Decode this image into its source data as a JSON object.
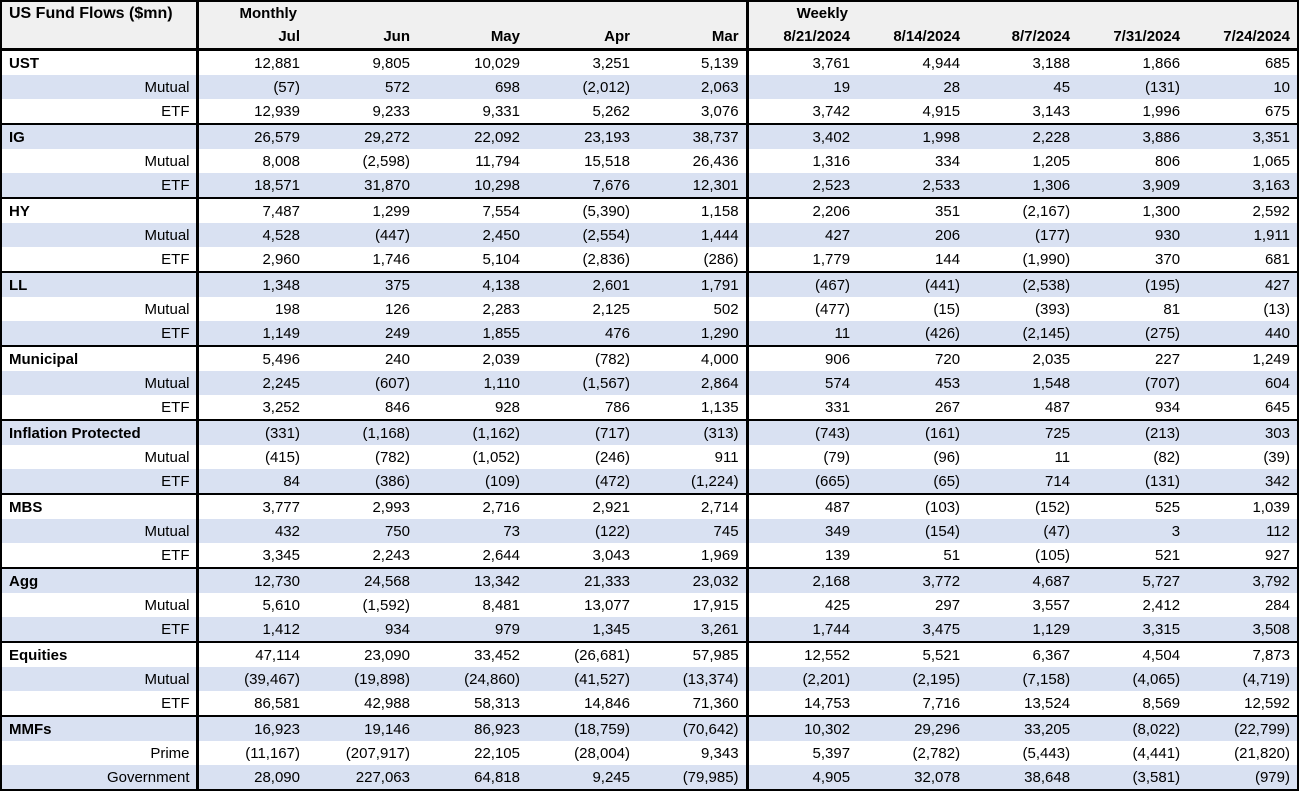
{
  "table": {
    "title": "US Fund Flows ($mn)",
    "sections": {
      "monthly": "Monthly",
      "weekly": "Weekly"
    },
    "monthly_columns": [
      "Jul",
      "Jun",
      "May",
      "Apr",
      "Mar"
    ],
    "weekly_columns": [
      "8/21/2024",
      "8/14/2024",
      "8/7/2024",
      "7/31/2024",
      "7/24/2024"
    ],
    "colors": {
      "stripe": "#d9e1f2",
      "header_bg": "#f0f0f0",
      "border": "#000000",
      "background": "#ffffff"
    },
    "groups": [
      {
        "rows": [
          {
            "label": "UST",
            "type": "category",
            "monthly": [
              "12,881",
              "9,805",
              "10,029",
              "3,251",
              "5,139"
            ],
            "weekly": [
              "3,761",
              "4,944",
              "3,188",
              "1,866",
              "685"
            ]
          },
          {
            "label": "Mutual",
            "type": "sub",
            "monthly": [
              "(57)",
              "572",
              "698",
              "(2,012)",
              "2,063"
            ],
            "weekly": [
              "19",
              "28",
              "45",
              "(131)",
              "10"
            ]
          },
          {
            "label": "ETF",
            "type": "sub",
            "monthly": [
              "12,939",
              "9,233",
              "9,331",
              "5,262",
              "3,076"
            ],
            "weekly": [
              "3,742",
              "4,915",
              "3,143",
              "1,996",
              "675"
            ]
          }
        ]
      },
      {
        "rows": [
          {
            "label": "IG",
            "type": "category",
            "monthly": [
              "26,579",
              "29,272",
              "22,092",
              "23,193",
              "38,737"
            ],
            "weekly": [
              "3,402",
              "1,998",
              "2,228",
              "3,886",
              "3,351"
            ]
          },
          {
            "label": "Mutual",
            "type": "sub",
            "monthly": [
              "8,008",
              "(2,598)",
              "11,794",
              "15,518",
              "26,436"
            ],
            "weekly": [
              "1,316",
              "334",
              "1,205",
              "806",
              "1,065"
            ]
          },
          {
            "label": "ETF",
            "type": "sub",
            "monthly": [
              "18,571",
              "31,870",
              "10,298",
              "7,676",
              "12,301"
            ],
            "weekly": [
              "2,523",
              "2,533",
              "1,306",
              "3,909",
              "3,163"
            ]
          }
        ]
      },
      {
        "rows": [
          {
            "label": "HY",
            "type": "category",
            "monthly": [
              "7,487",
              "1,299",
              "7,554",
              "(5,390)",
              "1,158"
            ],
            "weekly": [
              "2,206",
              "351",
              "(2,167)",
              "1,300",
              "2,592"
            ]
          },
          {
            "label": "Mutual",
            "type": "sub",
            "monthly": [
              "4,528",
              "(447)",
              "2,450",
              "(2,554)",
              "1,444"
            ],
            "weekly": [
              "427",
              "206",
              "(177)",
              "930",
              "1,911"
            ]
          },
          {
            "label": "ETF",
            "type": "sub",
            "monthly": [
              "2,960",
              "1,746",
              "5,104",
              "(2,836)",
              "(286)"
            ],
            "weekly": [
              "1,779",
              "144",
              "(1,990)",
              "370",
              "681"
            ]
          }
        ]
      },
      {
        "rows": [
          {
            "label": "LL",
            "type": "category",
            "monthly": [
              "1,348",
              "375",
              "4,138",
              "2,601",
              "1,791"
            ],
            "weekly": [
              "(467)",
              "(441)",
              "(2,538)",
              "(195)",
              "427"
            ]
          },
          {
            "label": "Mutual",
            "type": "sub",
            "monthly": [
              "198",
              "126",
              "2,283",
              "2,125",
              "502"
            ],
            "weekly": [
              "(477)",
              "(15)",
              "(393)",
              "81",
              "(13)"
            ]
          },
          {
            "label": "ETF",
            "type": "sub",
            "monthly": [
              "1,149",
              "249",
              "1,855",
              "476",
              "1,290"
            ],
            "weekly": [
              "11",
              "(426)",
              "(2,145)",
              "(275)",
              "440"
            ]
          }
        ]
      },
      {
        "rows": [
          {
            "label": "Municipal",
            "type": "category",
            "monthly": [
              "5,496",
              "240",
              "2,039",
              "(782)",
              "4,000"
            ],
            "weekly": [
              "906",
              "720",
              "2,035",
              "227",
              "1,249"
            ]
          },
          {
            "label": "Mutual",
            "type": "sub",
            "monthly": [
              "2,245",
              "(607)",
              "1,110",
              "(1,567)",
              "2,864"
            ],
            "weekly": [
              "574",
              "453",
              "1,548",
              "(707)",
              "604"
            ]
          },
          {
            "label": "ETF",
            "type": "sub",
            "monthly": [
              "3,252",
              "846",
              "928",
              "786",
              "1,135"
            ],
            "weekly": [
              "331",
              "267",
              "487",
              "934",
              "645"
            ]
          }
        ]
      },
      {
        "rows": [
          {
            "label": "Inflation Protected",
            "type": "category",
            "monthly": [
              "(331)",
              "(1,168)",
              "(1,162)",
              "(717)",
              "(313)"
            ],
            "weekly": [
              "(743)",
              "(161)",
              "725",
              "(213)",
              "303"
            ]
          },
          {
            "label": "Mutual",
            "type": "sub",
            "monthly": [
              "(415)",
              "(782)",
              "(1,052)",
              "(246)",
              "911"
            ],
            "weekly": [
              "(79)",
              "(96)",
              "11",
              "(82)",
              "(39)"
            ]
          },
          {
            "label": "ETF",
            "type": "sub",
            "monthly": [
              "84",
              "(386)",
              "(109)",
              "(472)",
              "(1,224)"
            ],
            "weekly": [
              "(665)",
              "(65)",
              "714",
              "(131)",
              "342"
            ]
          }
        ]
      },
      {
        "rows": [
          {
            "label": "MBS",
            "type": "category",
            "monthly": [
              "3,777",
              "2,993",
              "2,716",
              "2,921",
              "2,714"
            ],
            "weekly": [
              "487",
              "(103)",
              "(152)",
              "525",
              "1,039"
            ]
          },
          {
            "label": "Mutual",
            "type": "sub",
            "monthly": [
              "432",
              "750",
              "73",
              "(122)",
              "745"
            ],
            "weekly": [
              "349",
              "(154)",
              "(47)",
              "3",
              "112"
            ]
          },
          {
            "label": "ETF",
            "type": "sub",
            "monthly": [
              "3,345",
              "2,243",
              "2,644",
              "3,043",
              "1,969"
            ],
            "weekly": [
              "139",
              "51",
              "(105)",
              "521",
              "927"
            ]
          }
        ]
      },
      {
        "rows": [
          {
            "label": "Agg",
            "type": "category",
            "monthly": [
              "12,730",
              "24,568",
              "13,342",
              "21,333",
              "23,032"
            ],
            "weekly": [
              "2,168",
              "3,772",
              "4,687",
              "5,727",
              "3,792"
            ]
          },
          {
            "label": "Mutual",
            "type": "sub",
            "monthly": [
              "5,610",
              "(1,592)",
              "8,481",
              "13,077",
              "17,915"
            ],
            "weekly": [
              "425",
              "297",
              "3,557",
              "2,412",
              "284"
            ]
          },
          {
            "label": "ETF",
            "type": "sub",
            "monthly": [
              "1,412",
              "934",
              "979",
              "1,345",
              "3,261"
            ],
            "weekly": [
              "1,744",
              "3,475",
              "1,129",
              "3,315",
              "3,508"
            ]
          }
        ]
      },
      {
        "rows": [
          {
            "label": "Equities",
            "type": "category",
            "monthly": [
              "47,114",
              "23,090",
              "33,452",
              "(26,681)",
              "57,985"
            ],
            "weekly": [
              "12,552",
              "5,521",
              "6,367",
              "4,504",
              "7,873"
            ]
          },
          {
            "label": "Mutual",
            "type": "sub",
            "monthly": [
              "(39,467)",
              "(19,898)",
              "(24,860)",
              "(41,527)",
              "(13,374)"
            ],
            "weekly": [
              "(2,201)",
              "(2,195)",
              "(7,158)",
              "(4,065)",
              "(4,719)"
            ]
          },
          {
            "label": "ETF",
            "type": "sub",
            "monthly": [
              "86,581",
              "42,988",
              "58,313",
              "14,846",
              "71,360"
            ],
            "weekly": [
              "14,753",
              "7,716",
              "13,524",
              "8,569",
              "12,592"
            ]
          }
        ]
      },
      {
        "rows": [
          {
            "label": "MMFs",
            "type": "category",
            "monthly": [
              "16,923",
              "19,146",
              "86,923",
              "(18,759)",
              "(70,642)"
            ],
            "weekly": [
              "10,302",
              "29,296",
              "33,205",
              "(8,022)",
              "(22,799)"
            ]
          },
          {
            "label": "Prime",
            "type": "sub",
            "monthly": [
              "(11,167)",
              "(207,917)",
              "22,105",
              "(28,004)",
              "9,343"
            ],
            "weekly": [
              "5,397",
              "(2,782)",
              "(5,443)",
              "(4,441)",
              "(21,820)"
            ]
          },
          {
            "label": "Government",
            "type": "sub",
            "monthly": [
              "28,090",
              "227,063",
              "64,818",
              "9,245",
              "(79,985)"
            ],
            "weekly": [
              "4,905",
              "32,078",
              "38,648",
              "(3,581)",
              "(979)"
            ]
          }
        ]
      }
    ]
  }
}
